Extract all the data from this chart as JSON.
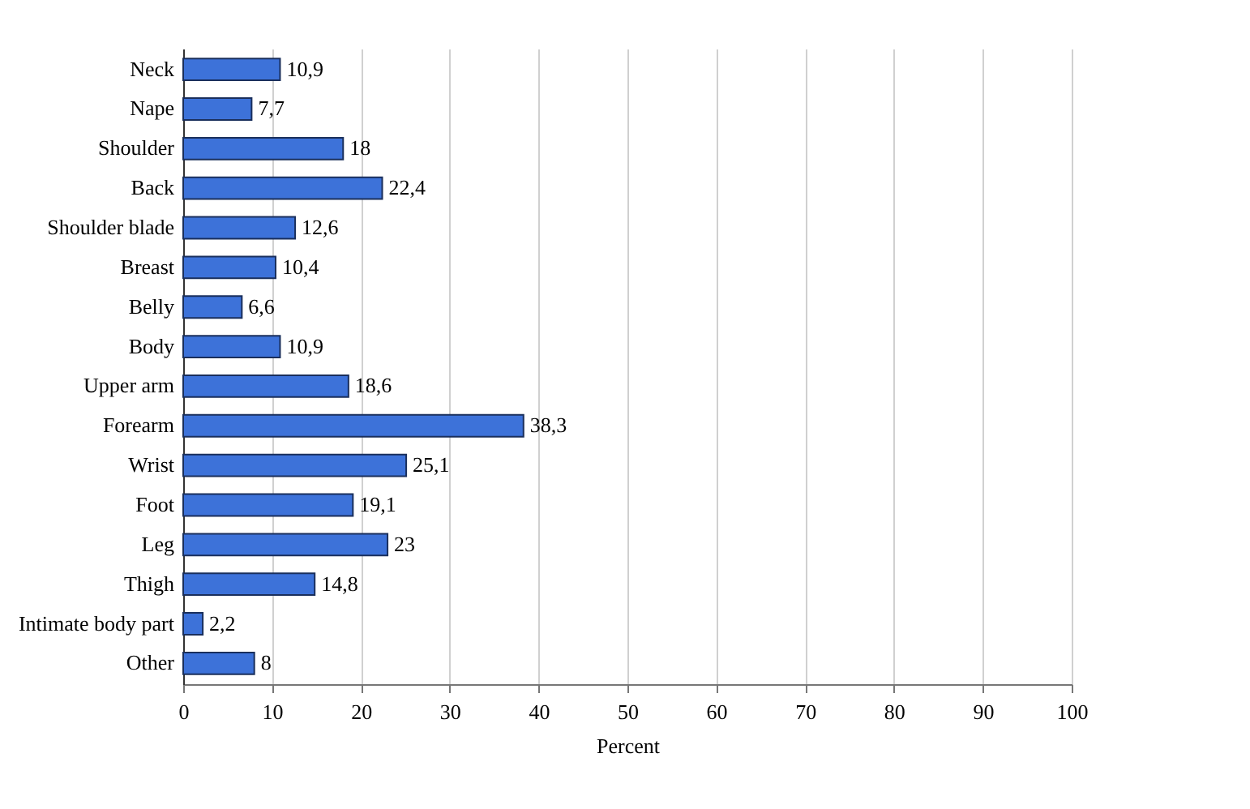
{
  "chart_data": {
    "type": "bar",
    "orientation": "horizontal",
    "xlabel": "Percent",
    "categories": [
      "Neck",
      "Nape",
      "Shoulder",
      "Back",
      "Shoulder blade",
      "Breast",
      "Belly",
      "Body",
      "Upper arm",
      "Forearm",
      "Wrist",
      "Foot",
      "Leg",
      "Thigh",
      "Intimate body part",
      "Other"
    ],
    "values": [
      10.9,
      7.7,
      18,
      22.4,
      12.6,
      10.4,
      6.6,
      10.9,
      18.6,
      38.3,
      25.1,
      19.1,
      23,
      14.8,
      2.2,
      8
    ],
    "value_labels": [
      "10,9",
      "7,7",
      "18",
      "22,4",
      "12,6",
      "10,4",
      "6,6",
      "10,9",
      "18,6",
      "38,3",
      "25,1",
      "19,1",
      "23",
      "14,8",
      "2,2",
      "8"
    ],
    "color": "#3d72d9",
    "xlim": [
      0,
      100
    ],
    "xticks": [
      0,
      10,
      20,
      30,
      40,
      50,
      60,
      70,
      80,
      90,
      100
    ],
    "grid": "x"
  }
}
